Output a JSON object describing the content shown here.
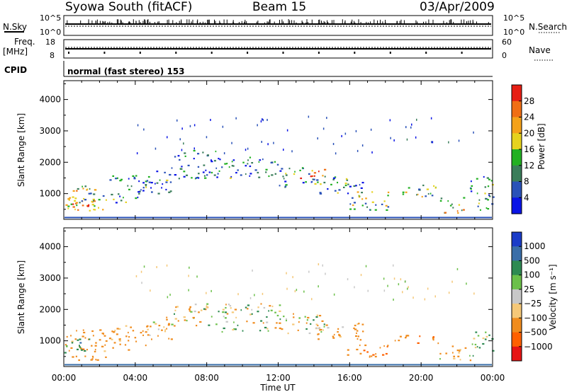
{
  "header": {
    "station": "Syowa South (fitACF)",
    "beam": "Beam 15",
    "date": "03/Apr/2009"
  },
  "top_panels": {
    "nsky_label": "N.Sky",
    "nsky_ticks": [
      "10^5",
      "10^0"
    ],
    "nsearch_label": "N.Search",
    "nsearch_ticks": [
      "10^5",
      "10^0"
    ],
    "freq_label_1": "Freq.",
    "freq_label_2": "[MHz]",
    "freq_ticks": [
      "18",
      "8"
    ],
    "nave_label": "Nave",
    "nave_ticks": [
      "60",
      "0"
    ],
    "cpid_label": "CPID",
    "cpid_value": "normal (fast stereo) 153"
  },
  "chart_data": [
    {
      "type": "heatmap",
      "name": "power",
      "xlabel": "Time UT",
      "ylabel": "Slant Range [km]",
      "xticks": [
        "00:00",
        "04:00",
        "08:00",
        "12:00",
        "16:00",
        "20:00",
        "00:00"
      ],
      "xlim_hours": [
        0,
        24
      ],
      "ylim_km": [
        180,
        4600
      ],
      "yticks": [
        1000,
        2000,
        3000,
        4000
      ],
      "colorbar_label": "Power [dB]",
      "colorbar_ticks": [
        "4",
        "8",
        "12",
        "16",
        "20",
        "24",
        "28"
      ],
      "colorbar_range": [
        0,
        30
      ],
      "colors": [
        "#0a14e6",
        "#2a52b8",
        "#3a7d5a",
        "#22b022",
        "#e6d21e",
        "#f5a21a",
        "#f06e14",
        "#e61e14"
      ],
      "grid": false,
      "regions": [
        {
          "t": [
            0.0,
            2.4
          ],
          "r": [
            400,
            1300
          ],
          "v": 14
        },
        {
          "t": [
            0.0,
            2.2
          ],
          "r": [
            500,
            900
          ],
          "v": 22
        },
        {
          "t": [
            2.5,
            4.6
          ],
          "r": [
            700,
            1600
          ],
          "v": 8
        },
        {
          "t": [
            4.4,
            6.0
          ],
          "r": [
            1000,
            1800
          ],
          "v": 9
        },
        {
          "t": [
            6.0,
            8.5
          ],
          "r": [
            1500,
            2400
          ],
          "v": 6
        },
        {
          "t": [
            8.5,
            12.0
          ],
          "r": [
            1500,
            2200
          ],
          "v": 7
        },
        {
          "t": [
            12.0,
            14.0
          ],
          "r": [
            1200,
            1900
          ],
          "v": 10
        },
        {
          "t": [
            13.2,
            14.6
          ],
          "r": [
            1500,
            1800
          ],
          "v": 22
        },
        {
          "t": [
            14.0,
            16.8
          ],
          "r": [
            1000,
            1600
          ],
          "v": 9
        },
        {
          "t": [
            15.8,
            18.2
          ],
          "r": [
            450,
            1100
          ],
          "v": 13
        },
        {
          "t": [
            18.5,
            21.0
          ],
          "r": [
            900,
            1300
          ],
          "v": 12
        },
        {
          "t": [
            21.0,
            22.6
          ],
          "r": [
            400,
            900
          ],
          "v": 18
        },
        {
          "t": [
            22.6,
            24.0
          ],
          "r": [
            500,
            1600
          ],
          "v": 8
        }
      ]
    },
    {
      "type": "heatmap",
      "name": "velocity",
      "xlabel": "Time UT",
      "ylabel": "Slant Range [km]",
      "xticks": [
        "00:00",
        "04:00",
        "08:00",
        "12:00",
        "16:00",
        "20:00",
        "00:00"
      ],
      "xlim_hours": [
        0,
        24
      ],
      "ylim_km": [
        180,
        4600
      ],
      "yticks": [
        1000,
        2000,
        3000,
        4000
      ],
      "colorbar_label": "Velocity [m s⁻¹]",
      "colorbar_ticks": [
        "1000",
        "500",
        "100",
        "25",
        "−25",
        "−100",
        "−500",
        "−1000"
      ],
      "colors": [
        "#1a3cc8",
        "#3a6ea8",
        "#2e8a52",
        "#6cc04a",
        "#c8c8c8",
        "#f5c878",
        "#f08c1e",
        "#ff6000",
        "#e61414"
      ],
      "grid": false,
      "regions": [
        {
          "t": [
            0.0,
            2.4
          ],
          "r": [
            400,
            1400
          ],
          "v": -300
        },
        {
          "t": [
            0.0,
            1.5
          ],
          "r": [
            600,
            1100
          ],
          "v": 300
        },
        {
          "t": [
            2.5,
            4.6
          ],
          "r": [
            700,
            1500
          ],
          "v": -250
        },
        {
          "t": [
            4.4,
            6.0
          ],
          "r": [
            1000,
            1800
          ],
          "v": -150
        },
        {
          "t": [
            6.0,
            8.6
          ],
          "r": [
            1500,
            2200
          ],
          "v": -60
        },
        {
          "t": [
            8.6,
            12.2
          ],
          "r": [
            1300,
            2200
          ],
          "v": 0
        },
        {
          "t": [
            12.2,
            14.6
          ],
          "r": [
            1200,
            1900
          ],
          "v": -100
        },
        {
          "t": [
            14.0,
            16.8
          ],
          "r": [
            1000,
            1600
          ],
          "v": -200
        },
        {
          "t": [
            15.8,
            18.2
          ],
          "r": [
            450,
            900
          ],
          "v": -400
        },
        {
          "t": [
            18.5,
            21.0
          ],
          "r": [
            900,
            1200
          ],
          "v": -500
        },
        {
          "t": [
            21.0,
            22.8
          ],
          "r": [
            400,
            900
          ],
          "v": -150
        },
        {
          "t": [
            22.8,
            24.0
          ],
          "r": [
            500,
            1300
          ],
          "v": 150
        }
      ]
    }
  ]
}
